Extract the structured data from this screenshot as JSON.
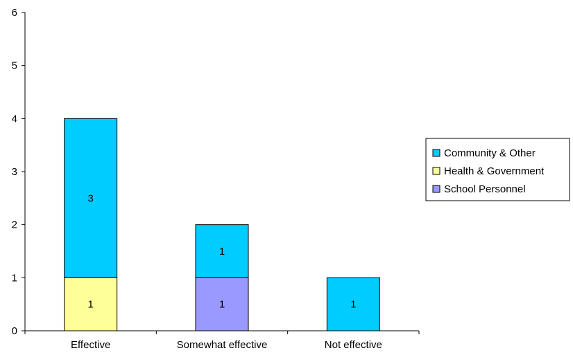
{
  "chart_data": {
    "type": "bar",
    "stacked": true,
    "categories": [
      "Effective",
      "Somewhat effective",
      "Not effective"
    ],
    "series": [
      {
        "name": "School Personnel",
        "color": "#9999ff",
        "values": [
          0,
          1,
          0
        ]
      },
      {
        "name": "Health & Government",
        "color": "#ffff99",
        "values": [
          1,
          0,
          0
        ]
      },
      {
        "name": "Community & Other",
        "color": "#00ccff",
        "values": [
          3,
          1,
          1
        ]
      }
    ],
    "legend_order": [
      "Community & Other",
      "Health & Government",
      "School Personnel"
    ],
    "ylim": [
      0,
      6
    ],
    "yticks": [
      0,
      1,
      2,
      3,
      4,
      5,
      6
    ],
    "legend_position": "right",
    "grid": false
  }
}
